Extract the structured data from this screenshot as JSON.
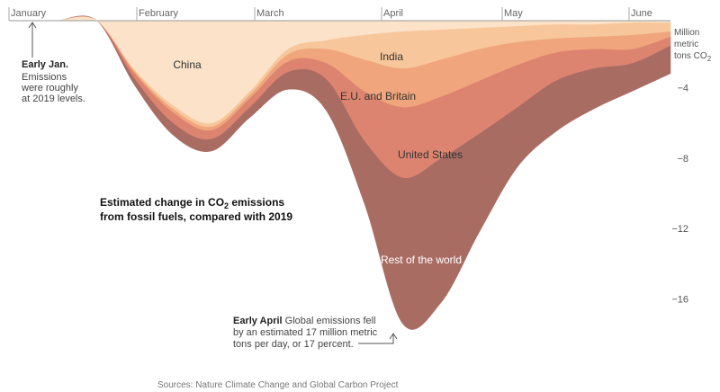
{
  "chart_data": {
    "type": "area",
    "title_line1": "Estimated change in CO",
    "title_sub": "2",
    "title_line1_tail": " emissions",
    "title_line2": "from fossil fuels, compared with 2019",
    "unit_label": [
      "Million",
      "metric",
      "tons CO"
    ],
    "unit_sub": "2",
    "x_ticks": [
      "January",
      "February",
      "March",
      "April",
      "May",
      "June"
    ],
    "y_ticks": [
      {
        "value": -4,
        "label": "−4"
      },
      {
        "value": -8,
        "label": "−8"
      },
      {
        "value": -12,
        "label": "−12"
      },
      {
        "value": -16,
        "label": "−16"
      }
    ],
    "ylim": [
      -19,
      0
    ],
    "x": [
      0,
      10,
      20,
      30,
      40,
      50,
      60,
      70,
      80,
      90,
      100,
      110,
      120,
      130,
      140,
      150,
      160
    ],
    "series": [
      {
        "name": "China",
        "color": "#fbe2c8",
        "values": [
          0,
          0,
          -2.8,
          -4.8,
          -5.8,
          -4.0,
          -1.6,
          -1.1,
          -0.8,
          -0.6,
          -0.5,
          -0.4,
          -0.3,
          -0.2,
          -0.2,
          -0.1,
          -0.1
        ]
      },
      {
        "name": "India",
        "color": "#f7c79b",
        "values": [
          0,
          0,
          -0.1,
          -0.2,
          -0.2,
          -0.2,
          -0.3,
          -0.5,
          -1.4,
          -2.1,
          -1.7,
          -1.2,
          -0.9,
          -0.8,
          -0.7,
          -0.7,
          -0.5
        ]
      },
      {
        "name": "E.U. and Britain",
        "color": "#f0a57c",
        "values": [
          0,
          0,
          -0.1,
          -0.2,
          -0.2,
          -0.2,
          -0.4,
          -0.8,
          -1.8,
          -2.2,
          -2.1,
          -1.8,
          -1.3,
          -0.8,
          -0.7,
          -0.8,
          -0.3
        ]
      },
      {
        "name": "United States",
        "color": "#dd8470",
        "values": [
          0,
          0,
          -0.3,
          -0.6,
          -0.5,
          -0.5,
          -0.6,
          -0.9,
          -2.8,
          -4.0,
          -3.5,
          -3.0,
          -2.4,
          -1.6,
          -1.1,
          -0.8,
          -0.5
        ]
      },
      {
        "name": "Rest of the world",
        "color": "#a96c63",
        "values": [
          0,
          0,
          -0.4,
          -0.7,
          -0.7,
          -0.6,
          -1.0,
          -1.8,
          -3.6,
          -8.3,
          -8.2,
          -5.6,
          -3.4,
          -2.9,
          -2.3,
          -1.6,
          -1.6
        ]
      }
    ],
    "annotations": {
      "early_jan": {
        "bold": "Early Jan.",
        "lines": [
          "Emissions",
          "were roughly",
          "at 2019 levels."
        ]
      },
      "early_april": {
        "bold": "Early April",
        "first_tail": " Global emissions fell",
        "lines": [
          "by an estimated 17 million metric",
          "tons per day, or 17 percent."
        ]
      }
    },
    "source": "Sources: Nature Climate Change and Global Carbon Project"
  }
}
